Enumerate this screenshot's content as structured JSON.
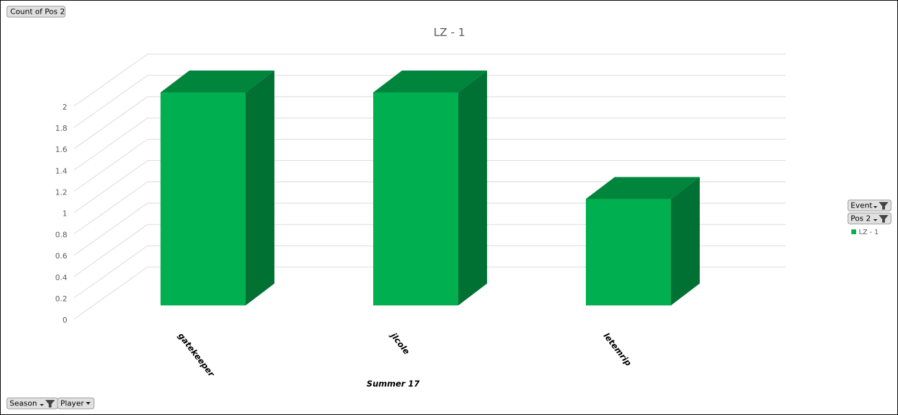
{
  "chart_data": {
    "type": "bar3d",
    "title": "LZ - 1",
    "categories": [
      "gatekeeper",
      "jlcole",
      "letemrip"
    ],
    "x_group_label": "Summer 17",
    "series": [
      {
        "name": "LZ - 1",
        "color": "#00b050",
        "values": [
          2,
          2,
          1
        ]
      }
    ],
    "ylim": [
      0,
      2
    ],
    "yticks": [
      0,
      0.2,
      0.4,
      0.6,
      0.8,
      1,
      1.2,
      1.4,
      1.6,
      1.8,
      2
    ],
    "grid": true,
    "value_field": "Count of Pos 2",
    "filter_fields": [
      "Event",
      "Pos 2"
    ],
    "axis_fields": [
      "Season",
      "Player"
    ]
  }
}
